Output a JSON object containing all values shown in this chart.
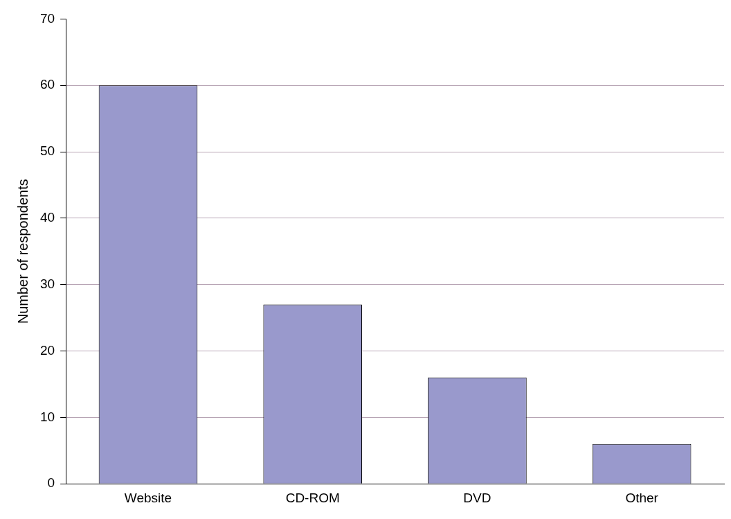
{
  "chart_data": {
    "type": "bar",
    "ylabel": "Number of respondents",
    "categories": [
      "Website",
      "CD-ROM",
      "DVD",
      "Other"
    ],
    "values": [
      60,
      27,
      16,
      6
    ],
    "color": "#9999cc",
    "ylim": [
      0,
      70
    ],
    "yticks": [
      0,
      10,
      20,
      30,
      40,
      50,
      60,
      70
    ],
    "grid": "y",
    "legend": false
  }
}
